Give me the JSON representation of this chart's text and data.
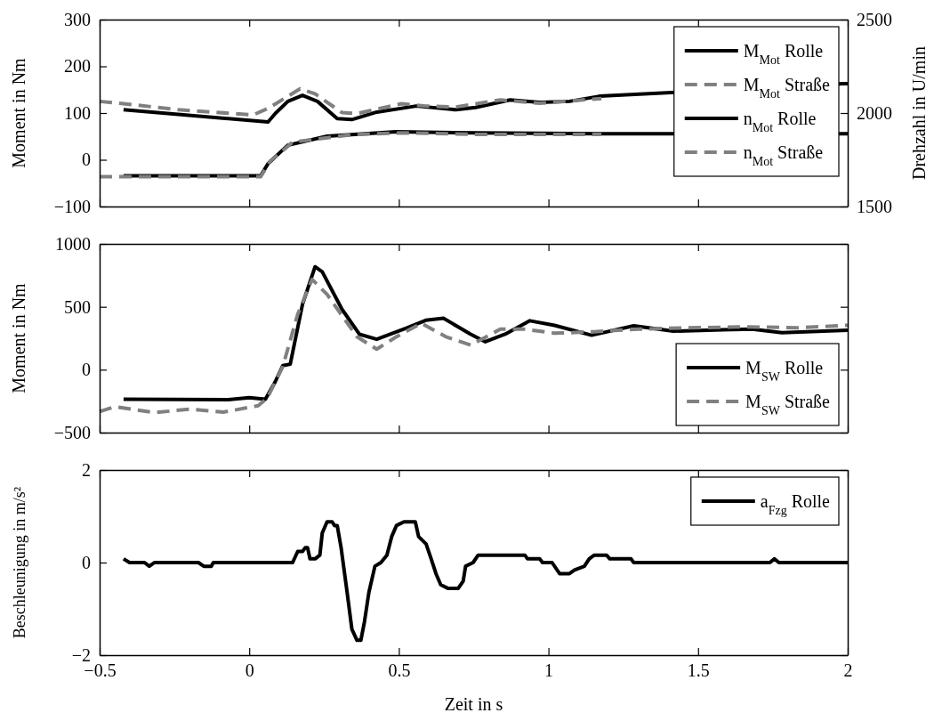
{
  "chart_data": [
    {
      "type": "line",
      "ylabel": "Moment in Nm",
      "y2label": "Drehzahl in U/min",
      "xlim": [
        -0.5,
        2
      ],
      "xticks": [
        {
          "value": -0.5,
          "label": null
        },
        {
          "value": 0,
          "label": null
        },
        {
          "value": 0.5,
          "label": null
        },
        {
          "value": 1,
          "label": null
        },
        {
          "value": 1.5,
          "label": null
        },
        {
          "value": 2,
          "label": null
        }
      ],
      "ylim": [
        -100,
        300
      ],
      "yticks": [
        {
          "value": -100,
          "label": "−100"
        },
        0,
        100,
        200,
        300
      ],
      "y2lim": [
        1500,
        2500
      ],
      "y2ticks": [
        1500,
        2000,
        2500
      ],
      "tick_labels": "y",
      "legend": "top right",
      "grid": false,
      "series": [
        {
          "name": "M$_{Mot}$ Rolle",
          "color": "#000000",
          "line_style": "solid",
          "x": [
            -0.42,
            0.063,
            0.087,
            0.129,
            0.178,
            0.228,
            0.294,
            0.343,
            0.426,
            0.558,
            0.69,
            0.756,
            0.872,
            0.971,
            1.07,
            1.17,
            1.985,
            2.0
          ],
          "values": [
            107,
            81,
            99,
            125,
            138,
            125,
            88,
            86,
            102,
            115,
            107,
            112,
            128,
            123,
            125,
            136,
            163,
            163
          ]
        },
        {
          "name": "M$_{Mot}$ Straße",
          "color": "#808080",
          "line_style": "dashed",
          "x": [
            -0.5,
            -0.42,
            -0.235,
            0.013,
            0.063,
            0.17,
            0.22,
            0.31,
            0.36,
            0.51,
            0.59,
            0.69,
            0.84,
            0.97,
            1.177
          ],
          "values": [
            125,
            120,
            107,
            96,
            110,
            152,
            141,
            101,
            99,
            120,
            115,
            113,
            128,
            121,
            131
          ]
        },
        {
          "name": "n$_{Mot}$ Rolle",
          "color": "#000000",
          "line_style": "solid",
          "axis": "y2",
          "x": [
            -0.42,
            0.038,
            0.063,
            0.129,
            0.26,
            0.49,
            0.756,
            1.177,
            1.985,
            2.0
          ],
          "values": [
            1664,
            1664,
            1730,
            1828,
            1876,
            1900,
            1894,
            1889,
            1889,
            1889
          ]
        },
        {
          "name": "n$_{Mot}$ Straße",
          "color": "#808080",
          "line_style": "dashed",
          "axis": "y2",
          "x": [
            -0.5,
            0.038,
            0.07,
            0.145,
            0.343,
            0.51,
            0.756,
            1.177
          ],
          "values": [
            1659,
            1659,
            1743,
            1844,
            1884,
            1894,
            1886,
            1886
          ]
        }
      ]
    },
    {
      "type": "line",
      "ylabel": "Moment in Nm",
      "xlim": [
        -0.5,
        2
      ],
      "xticks": [
        {
          "value": -0.5,
          "label": null
        },
        {
          "value": 0,
          "label": null
        },
        {
          "value": 0.5,
          "label": null
        },
        {
          "value": 1,
          "label": null
        },
        {
          "value": 1.5,
          "label": null
        },
        {
          "value": 2,
          "label": null
        }
      ],
      "ylim": [
        -500,
        1000
      ],
      "yticks": [
        {
          "value": -500,
          "label": "−500"
        },
        0,
        500,
        1000
      ],
      "tick_labels": "y",
      "legend": "bottom right",
      "grid": false,
      "series": [
        {
          "name": "M$_{SW}$ Rolle",
          "color": "#000000",
          "line_style": "solid",
          "x": [
            -0.42,
            -0.07,
            0,
            0.054,
            0.087,
            0.112,
            0.137,
            0.178,
            0.22,
            0.244,
            0.31,
            0.368,
            0.426,
            0.525,
            0.59,
            0.649,
            0.74,
            0.789,
            0.855,
            0.938,
            1.02,
            1.144,
            1.285,
            1.417,
            1.582,
            1.68,
            1.78,
            2.0
          ],
          "values": [
            -234,
            -238,
            -222,
            -234,
            -95,
            32,
            44,
            520,
            818,
            778,
            480,
            282,
            242,
            330,
            393,
            409,
            282,
            222,
            282,
            389,
            353,
            274,
            349,
            306,
            318,
            322,
            294,
            314
          ]
        },
        {
          "name": "M$_{SW}$ Straße",
          "color": "#808080",
          "line_style": "dashed",
          "x": [
            -0.5,
            -0.45,
            -0.317,
            -0.2,
            -0.086,
            0.03,
            0.06,
            0.112,
            0.162,
            0.21,
            0.26,
            0.36,
            0.426,
            0.492,
            0.575,
            0.657,
            0.74,
            0.839,
            0.92,
            1.02,
            1.152,
            1.3,
            1.466,
            1.664,
            1.83,
            2.0
          ],
          "values": [
            -333,
            -294,
            -341,
            -314,
            -337,
            -286,
            -226,
            24,
            441,
            718,
            599,
            262,
            163,
            262,
            369,
            262,
            195,
            322,
            322,
            290,
            302,
            322,
            333,
            341,
            333,
            353
          ]
        }
      ]
    },
    {
      "type": "line",
      "xlabel": "Zeit in s",
      "ylabel": "Beschleunigung in m/s²",
      "xlim": [
        -0.5,
        2
      ],
      "xticks": [
        {
          "value": -0.5,
          "label": "−0.5"
        },
        0,
        0.5,
        1,
        1.5,
        2
      ],
      "ylim": [
        -2,
        2
      ],
      "yticks": [
        {
          "value": -2,
          "label": "−2"
        },
        0,
        2
      ],
      "legend": "top right",
      "grid": false,
      "series": [
        {
          "name": "a$_{Fzg}$ Rolle",
          "color": "#000000",
          "line_style": "solid",
          "x": [
            -0.42,
            -0.4,
            -0.35,
            -0.334,
            -0.317,
            -0.17,
            -0.152,
            -0.127,
            -0.12,
            0.145,
            0.162,
            0.178,
            0.187,
            0.195,
            0.203,
            0.22,
            0.236,
            0.244,
            0.26,
            0.277,
            0.285,
            0.294,
            0.307,
            0.327,
            0.343,
            0.36,
            0.373,
            0.385,
            0.4,
            0.42,
            0.44,
            0.46,
            0.476,
            0.492,
            0.517,
            0.555,
            0.566,
            0.591,
            0.608,
            0.624,
            0.64,
            0.665,
            0.698,
            0.715,
            0.723,
            0.748,
            0.765,
            0.921,
            0.93,
            0.971,
            0.98,
            1.012,
            1.037,
            1.07,
            1.087,
            1.12,
            1.136,
            1.153,
            1.194,
            1.205,
            1.276,
            1.285,
            1.74,
            1.755,
            1.77,
            2.0
          ],
          "values": [
            0.08,
            0,
            0,
            -0.08,
            0,
            0,
            -0.08,
            -0.08,
            0,
            0,
            0.24,
            0.24,
            0.32,
            0.32,
            0.08,
            0.08,
            0.16,
            0.64,
            0.88,
            0.88,
            0.8,
            0.8,
            0.32,
            -0.64,
            -1.44,
            -1.68,
            -1.68,
            -1.28,
            -0.64,
            -0.08,
            0,
            0.16,
            0.56,
            0.8,
            0.88,
            0.88,
            0.56,
            0.4,
            0.08,
            -0.24,
            -0.48,
            -0.56,
            -0.56,
            -0.4,
            -0.08,
            0,
            0.16,
            0.16,
            0.08,
            0.08,
            0,
            0,
            -0.24,
            -0.24,
            -0.16,
            -0.08,
            0.08,
            0.16,
            0.16,
            0.08,
            0.08,
            0,
            0,
            0.08,
            0,
            0
          ]
        }
      ]
    }
  ]
}
